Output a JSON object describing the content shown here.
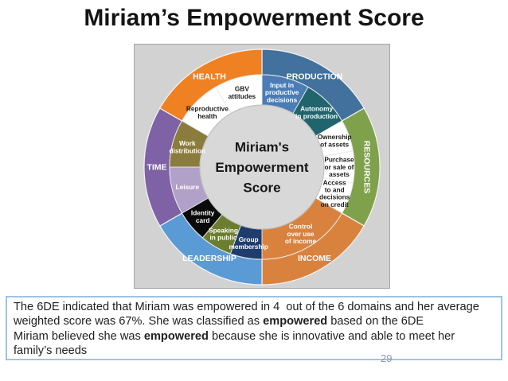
{
  "slide": {
    "title": "Miriam’s Empowerment Score",
    "page_number": "29"
  },
  "wheel": {
    "center_label_lines": [
      "Miriam's",
      "Empowerment",
      "Score"
    ],
    "center_bg": "#d8d8d8",
    "panel_bg": "#d2d2d2",
    "domains": [
      {
        "name": "production",
        "label": "PRODUCTION",
        "start": 0,
        "end": 60,
        "color": "#41719c",
        "label_color": "#ffffff",
        "rotate": false
      },
      {
        "name": "resources",
        "label": "RESOURCES",
        "start": 60,
        "end": 120,
        "color": "#80a14c",
        "label_color": "#ffffff",
        "rotate": true
      },
      {
        "name": "income",
        "label": "INCOME",
        "start": 120,
        "end": 180,
        "color": "#d9823e",
        "label_color": "#ffffff",
        "rotate": false
      },
      {
        "name": "leadership",
        "label": "LEADERSHIP",
        "start": 180,
        "end": 240,
        "color": "#5b9bd5",
        "label_color": "#ffffff",
        "rotate": false
      },
      {
        "name": "time",
        "label": "TIME",
        "start": 240,
        "end": 300,
        "color": "#7e62a5",
        "label_color": "#ffffff",
        "rotate": false
      },
      {
        "name": "health",
        "label": "HEALTH",
        "start": 300,
        "end": 360,
        "color": "#ef8123",
        "label_color": "#ffffff",
        "rotate": false
      }
    ],
    "indicators": [
      {
        "name": "input-in-productive-decisions",
        "lines": [
          "Input in",
          "productive",
          "decisions"
        ],
        "start": 0,
        "end": 30,
        "color": "#4a7cb5",
        "text_color": "#ffffff"
      },
      {
        "name": "autonomy-in-production",
        "lines": [
          "Autonomy",
          "in production"
        ],
        "start": 30,
        "end": 60,
        "color": "#20646c",
        "text_color": "#ffffff"
      },
      {
        "name": "ownership-of-assets",
        "lines": [
          "Ownership",
          "of assets"
        ],
        "start": 60,
        "end": 80,
        "color": "#ffffff",
        "text_color": "#1a1a1a"
      },
      {
        "name": "purchase-or-sale-of-assets",
        "lines": [
          "Purchase",
          "or sale of",
          "assets"
        ],
        "start": 80,
        "end": 100,
        "color": "#ffffff",
        "text_color": "#1a1a1a"
      },
      {
        "name": "access-to-and-decisions-on-credit",
        "lines": [
          "Access",
          "to and",
          "decisions",
          "on credit"
        ],
        "start": 100,
        "end": 120,
        "color": "#ffffff",
        "text_color": "#1a1a1a"
      },
      {
        "name": "control-over-use-of-income",
        "lines": [
          "Control",
          "over use",
          "of income"
        ],
        "start": 120,
        "end": 180,
        "color": "#d9823e",
        "text_color": "#ffffff"
      },
      {
        "name": "group-membership",
        "lines": [
          "Group",
          "membership"
        ],
        "start": 180,
        "end": 200,
        "color": "#1e3c6e",
        "text_color": "#ffffff"
      },
      {
        "name": "speaking-in-public",
        "lines": [
          "Speaking",
          "in public"
        ],
        "start": 200,
        "end": 220,
        "color": "#6c7d2f",
        "text_color": "#ffffff"
      },
      {
        "name": "identity-card",
        "lines": [
          "Identity",
          "card"
        ],
        "start": 220,
        "end": 240,
        "color": "#0a0a0a",
        "text_color": "#ffffff"
      },
      {
        "name": "leisure",
        "lines": [
          "Leisure"
        ],
        "start": 240,
        "end": 270,
        "color": "#b1a0c8",
        "text_color": "#ffffff"
      },
      {
        "name": "work-distribution",
        "lines": [
          "Work",
          "distribution"
        ],
        "start": 270,
        "end": 300,
        "color": "#8a7c3c",
        "text_color": "#ffffff"
      },
      {
        "name": "reproductive-health",
        "lines": [
          "Reproductive",
          "health"
        ],
        "start": 300,
        "end": 330,
        "color": "#ffffff",
        "text_color": "#1a1a1a"
      },
      {
        "name": "gbv-attitudes",
        "lines": [
          "GBV",
          "attitudes"
        ],
        "start": 330,
        "end": 360,
        "color": "#ffffff",
        "text_color": "#1a1a1a"
      }
    ]
  },
  "summary": {
    "border_color": "#9dc3e6",
    "paragraphs": [
      [
        {
          "text": "The 6DE indicated that Miriam was empowered in 4  out of the 6 domains and her average weighted score was 67%. She was classified as "
        },
        {
          "text": "empowered",
          "bold": true
        },
        {
          "text": " based on the 6DE"
        }
      ],
      [
        {
          "text": "Miriam believed she was "
        },
        {
          "text": "empowered",
          "bold": true
        },
        {
          "text": " because she is innovative and able to meet her family’s needs"
        }
      ]
    ]
  }
}
